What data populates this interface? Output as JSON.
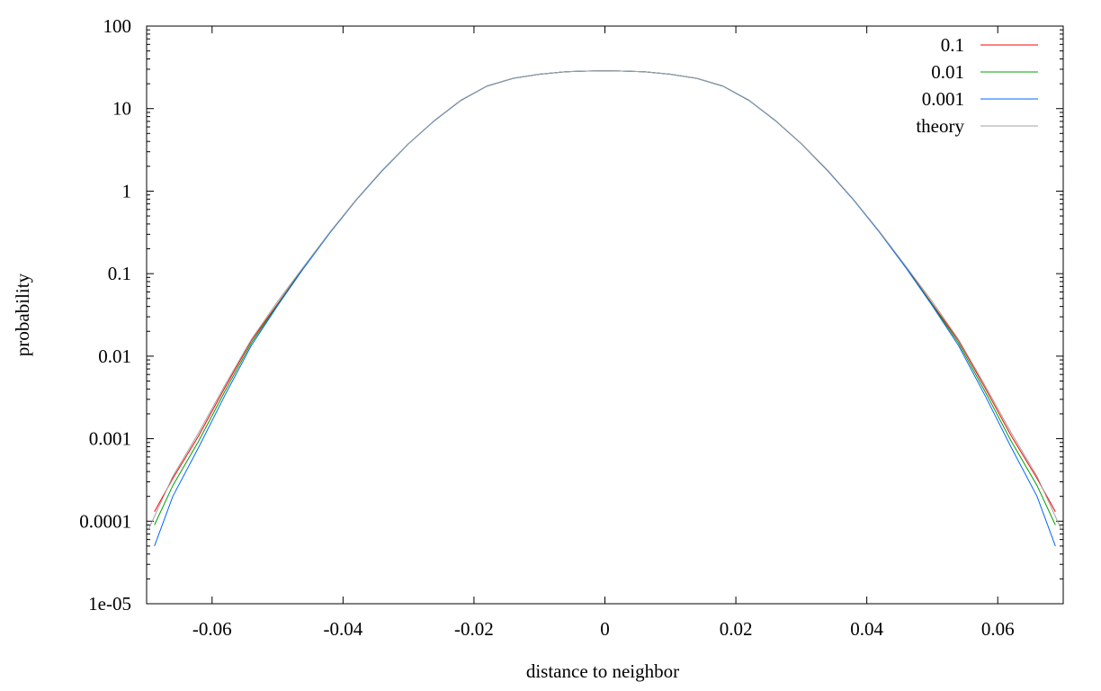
{
  "chart_data": {
    "type": "line",
    "title": "",
    "xlabel": "distance to neighbor",
    "ylabel": "probability",
    "xlim": [
      -0.07,
      0.07
    ],
    "ylim": [
      1e-05,
      100
    ],
    "yscale": "log",
    "grid": false,
    "legend_position": "top-right",
    "x_ticks": [
      {
        "value": -0.06,
        "label": "-0.06"
      },
      {
        "value": -0.04,
        "label": "-0.04"
      },
      {
        "value": -0.02,
        "label": "-0.02"
      },
      {
        "value": 0,
        "label": "0"
      },
      {
        "value": 0.02,
        "label": "0.02"
      },
      {
        "value": 0.04,
        "label": "0.04"
      },
      {
        "value": 0.06,
        "label": "0.06"
      }
    ],
    "y_ticks": [
      {
        "value": 100,
        "label": "100"
      },
      {
        "value": 10,
        "label": "10"
      },
      {
        "value": 1,
        "label": "1"
      },
      {
        "value": 0.1,
        "label": "0.1"
      },
      {
        "value": 0.01,
        "label": "0.01"
      },
      {
        "value": 0.001,
        "label": "0.001"
      },
      {
        "value": 0.0001,
        "label": "0.0001"
      },
      {
        "value": 1e-05,
        "label": "1e-05"
      }
    ],
    "series": [
      {
        "name": "0.1",
        "color": "#ff0000",
        "x": [
          -0.0688,
          -0.066,
          -0.062,
          -0.058,
          -0.054,
          -0.05,
          -0.046,
          -0.042,
          -0.038,
          -0.034,
          -0.03,
          -0.026,
          -0.022,
          -0.018,
          -0.014,
          -0.01,
          -0.006,
          -0.002,
          0.0,
          0.002,
          0.006,
          0.01,
          0.014,
          0.018,
          0.022,
          0.026,
          0.03,
          0.034,
          0.038,
          0.042,
          0.046,
          0.05,
          0.054,
          0.058,
          0.062,
          0.066,
          0.0688
        ],
        "values": [
          0.00013,
          0.00033,
          0.0011,
          0.0042,
          0.0155,
          0.043,
          0.119,
          0.315,
          0.78,
          1.78,
          3.75,
          7.2,
          12.6,
          18.8,
          23.3,
          26.1,
          28.0,
          28.6,
          28.7,
          28.6,
          28.0,
          26.1,
          23.3,
          18.8,
          12.6,
          7.2,
          3.75,
          1.78,
          0.78,
          0.315,
          0.119,
          0.043,
          0.0155,
          0.0042,
          0.0011,
          0.00033,
          0.00013
        ]
      },
      {
        "name": "0.01",
        "color": "#00a000",
        "x": [
          -0.0688,
          -0.066,
          -0.062,
          -0.058,
          -0.054,
          -0.05,
          -0.046,
          -0.042,
          -0.038,
          -0.034,
          -0.03,
          -0.026,
          -0.022,
          -0.018,
          -0.014,
          -0.01,
          -0.006,
          -0.002,
          0.0,
          0.002,
          0.006,
          0.01,
          0.014,
          0.018,
          0.022,
          0.026,
          0.03,
          0.034,
          0.038,
          0.042,
          0.046,
          0.05,
          0.054,
          0.058,
          0.062,
          0.066,
          0.0688
        ],
        "values": [
          9e-05,
          0.00027,
          0.00095,
          0.0038,
          0.0145,
          0.042,
          0.118,
          0.314,
          0.78,
          1.78,
          3.75,
          7.2,
          12.6,
          18.8,
          23.3,
          26.1,
          28.0,
          28.6,
          28.7,
          28.6,
          28.0,
          26.1,
          23.3,
          18.8,
          12.6,
          7.2,
          3.75,
          1.78,
          0.78,
          0.314,
          0.118,
          0.042,
          0.0145,
          0.0038,
          0.00095,
          0.00027,
          9e-05
        ]
      },
      {
        "name": "0.001",
        "color": "#0066ff",
        "x": [
          -0.0688,
          -0.066,
          -0.062,
          -0.058,
          -0.054,
          -0.05,
          -0.046,
          -0.042,
          -0.038,
          -0.034,
          -0.03,
          -0.026,
          -0.022,
          -0.018,
          -0.014,
          -0.01,
          -0.006,
          -0.002,
          0.0,
          0.002,
          0.006,
          0.01,
          0.014,
          0.018,
          0.022,
          0.026,
          0.03,
          0.034,
          0.038,
          0.042,
          0.046,
          0.05,
          0.054,
          0.058,
          0.062,
          0.066,
          0.0688
        ],
        "values": [
          5e-05,
          0.0002,
          0.0008,
          0.0034,
          0.0135,
          0.041,
          0.117,
          0.313,
          0.78,
          1.78,
          3.75,
          7.2,
          12.6,
          18.8,
          23.3,
          26.1,
          28.0,
          28.6,
          28.7,
          28.6,
          28.0,
          26.1,
          23.3,
          18.8,
          12.6,
          7.2,
          3.75,
          1.78,
          0.78,
          0.313,
          0.117,
          0.041,
          0.0135,
          0.0034,
          0.0008,
          0.0002,
          5e-05
        ]
      },
      {
        "name": "theory",
        "color": "#a0a0a0",
        "x": [
          -0.0697,
          -0.066,
          -0.062,
          -0.058,
          -0.054,
          -0.05,
          -0.046,
          -0.042,
          -0.038,
          -0.034,
          -0.03,
          -0.026,
          -0.022,
          -0.018,
          -0.014,
          -0.01,
          -0.006,
          -0.002,
          0.0,
          0.002,
          0.006,
          0.01,
          0.014,
          0.018,
          0.022,
          0.026,
          0.03,
          0.034,
          0.038,
          0.042,
          0.046,
          0.05,
          0.054,
          0.058,
          0.062,
          0.066,
          0.0697
        ],
        "values": [
          8e-05,
          0.00035,
          0.0012,
          0.0045,
          0.016,
          0.046,
          0.122,
          0.32,
          0.79,
          1.8,
          3.78,
          7.25,
          12.7,
          18.9,
          23.4,
          26.2,
          28.0,
          28.6,
          28.7,
          28.6,
          28.0,
          26.2,
          23.4,
          18.9,
          12.7,
          7.25,
          3.78,
          1.8,
          0.79,
          0.32,
          0.122,
          0.046,
          0.016,
          0.0045,
          0.0012,
          0.00035,
          8e-05
        ]
      }
    ]
  }
}
